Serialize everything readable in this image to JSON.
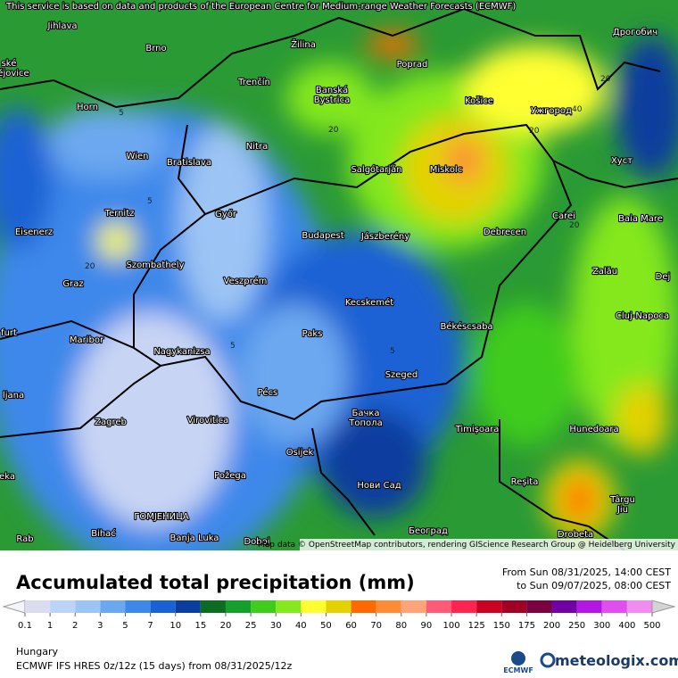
{
  "attribution": "This service is based on data and products of the European Centre for Medium-range Weather Forecasts (ECMWF)",
  "map_credit": "Map data © OpenStreetMap contributors, rendering GIScience Research Group @ Heidelberg University",
  "map": {
    "cities": [
      "Jihlava",
      "Brno",
      "Žilina",
      "Poprad",
      "Дрогобич",
      "ské",
      "ějovice",
      "Trenčín",
      "Banská",
      "Bystrica",
      "Košice",
      "Ужгород",
      "Horn",
      "Nitra",
      "Wien",
      "Bratislava",
      "Salgótarján",
      "Miskolc",
      "Хуст",
      "Ternitz",
      "Győr",
      "Carei",
      "Baia Mare",
      "Eisenerz",
      "Budapest",
      "Jászberény",
      "Debrecen",
      "Szombathely",
      "Zalău",
      "Dej",
      "Graz",
      "Veszprém",
      "Kecskemét",
      "Cluj-Napoca",
      "furt",
      "Maribor",
      "Paks",
      "Békéscsaba",
      "Nagykanizsa",
      "ljana",
      "Szeged",
      "Pécs",
      "Zagreb",
      "Virovitica",
      "Бачка",
      "Топола",
      "Timișoara",
      "Hunedoara",
      "Osijek",
      "eka",
      "Požega",
      "Нови Сад",
      "Reșita",
      "Târgu",
      "Jiu",
      "ГОМЈЕНИЦА",
      "Rab",
      "Bihać",
      "Banja Luka",
      "Doboj",
      "Београд",
      "Drobeta"
    ],
    "contours": [
      "5",
      "5",
      "20",
      "20",
      "20",
      "40",
      "5",
      "5",
      "20",
      "20"
    ]
  },
  "legend": {
    "title": "Accumulated total precipitation (mm)",
    "from": "From Sun 08/31/2025, 14:00 CEST",
    "to": "to Sun 09/07/2025, 08:00 CEST",
    "ticks": [
      0.1,
      1,
      2,
      3,
      5,
      7,
      10,
      15,
      20,
      25,
      30,
      40,
      50,
      60,
      70,
      80,
      90,
      100,
      125,
      150,
      175,
      200,
      250,
      300,
      400,
      500
    ],
    "colors": [
      "#f4f4fa",
      "#dcdcf0",
      "#bcd4f6",
      "#9cc4f4",
      "#6ca8f0",
      "#3e88ea",
      "#1a62d4",
      "#0a3d9e",
      "#0c6c22",
      "#14a02c",
      "#40cc1c",
      "#84e81c",
      "#ffff30",
      "#e4d200",
      "#ff6a00",
      "#ff8c34",
      "#ffa478",
      "#ff5a78",
      "#ff2450",
      "#cc0020",
      "#a00024",
      "#7a0040",
      "#7000a4",
      "#b414e4",
      "#e04ef0",
      "#f08cf0",
      "#f4c0f8",
      "#faeafa",
      "#d4d4d4"
    ]
  },
  "footer": {
    "region": "Hungary",
    "model": "ECMWF IFS HRES 0z/12z (15 days) from 08/31/2025/12z",
    "logo1": "ECMWF",
    "logo2": "meteologix.com"
  }
}
